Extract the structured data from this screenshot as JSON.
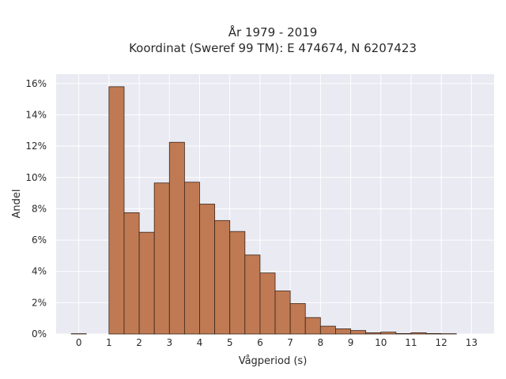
{
  "chart_data": {
    "type": "bar",
    "title": "År 1979 - 2019",
    "subtitle": "Koordinat (Sweref 99 TM): E 474674, N 6207423",
    "xlabel": "Vågperiod (s)",
    "ylabel": "Andel",
    "xlim": [
      -0.75,
      13.75
    ],
    "ylim": [
      0,
      16.6
    ],
    "x_ticks": [
      0,
      1,
      2,
      3,
      4,
      5,
      6,
      7,
      8,
      9,
      10,
      11,
      12,
      13
    ],
    "y_ticks": [
      0,
      2,
      4,
      6,
      8,
      10,
      12,
      14,
      16
    ],
    "y_tick_format": "percent",
    "bin_width": 0.5,
    "bins": [
      {
        "x0": -0.25,
        "value": 0.02
      },
      {
        "x0": 0.25,
        "value": 0
      },
      {
        "x0": 0.75,
        "value": 0
      },
      {
        "x0": 1.0,
        "value": 15.8
      },
      {
        "x0": 1.5,
        "value": 7.75
      },
      {
        "x0": 2.0,
        "value": 6.5
      },
      {
        "x0": 2.5,
        "value": 9.65
      },
      {
        "x0": 3.0,
        "value": 12.25
      },
      {
        "x0": 3.5,
        "value": 9.7
      },
      {
        "x0": 4.0,
        "value": 8.3
      },
      {
        "x0": 4.5,
        "value": 7.25
      },
      {
        "x0": 5.0,
        "value": 6.55
      },
      {
        "x0": 5.5,
        "value": 5.05
      },
      {
        "x0": 6.0,
        "value": 3.9
      },
      {
        "x0": 6.5,
        "value": 2.75
      },
      {
        "x0": 7.0,
        "value": 1.95
      },
      {
        "x0": 7.5,
        "value": 1.05
      },
      {
        "x0": 8.0,
        "value": 0.5
      },
      {
        "x0": 8.5,
        "value": 0.33
      },
      {
        "x0": 9.0,
        "value": 0.22
      },
      {
        "x0": 9.5,
        "value": 0.08
      },
      {
        "x0": 10.0,
        "value": 0.12
      },
      {
        "x0": 10.5,
        "value": 0.03
      },
      {
        "x0": 11.0,
        "value": 0.08
      },
      {
        "x0": 11.5,
        "value": 0.03
      },
      {
        "x0": 12.0,
        "value": 0.02
      }
    ],
    "bar_color": "#c07a53",
    "bar_edge_color": "#3a2418",
    "plot_background": "#e9eaf2",
    "grid": true,
    "grid_color": "#ffffff"
  }
}
